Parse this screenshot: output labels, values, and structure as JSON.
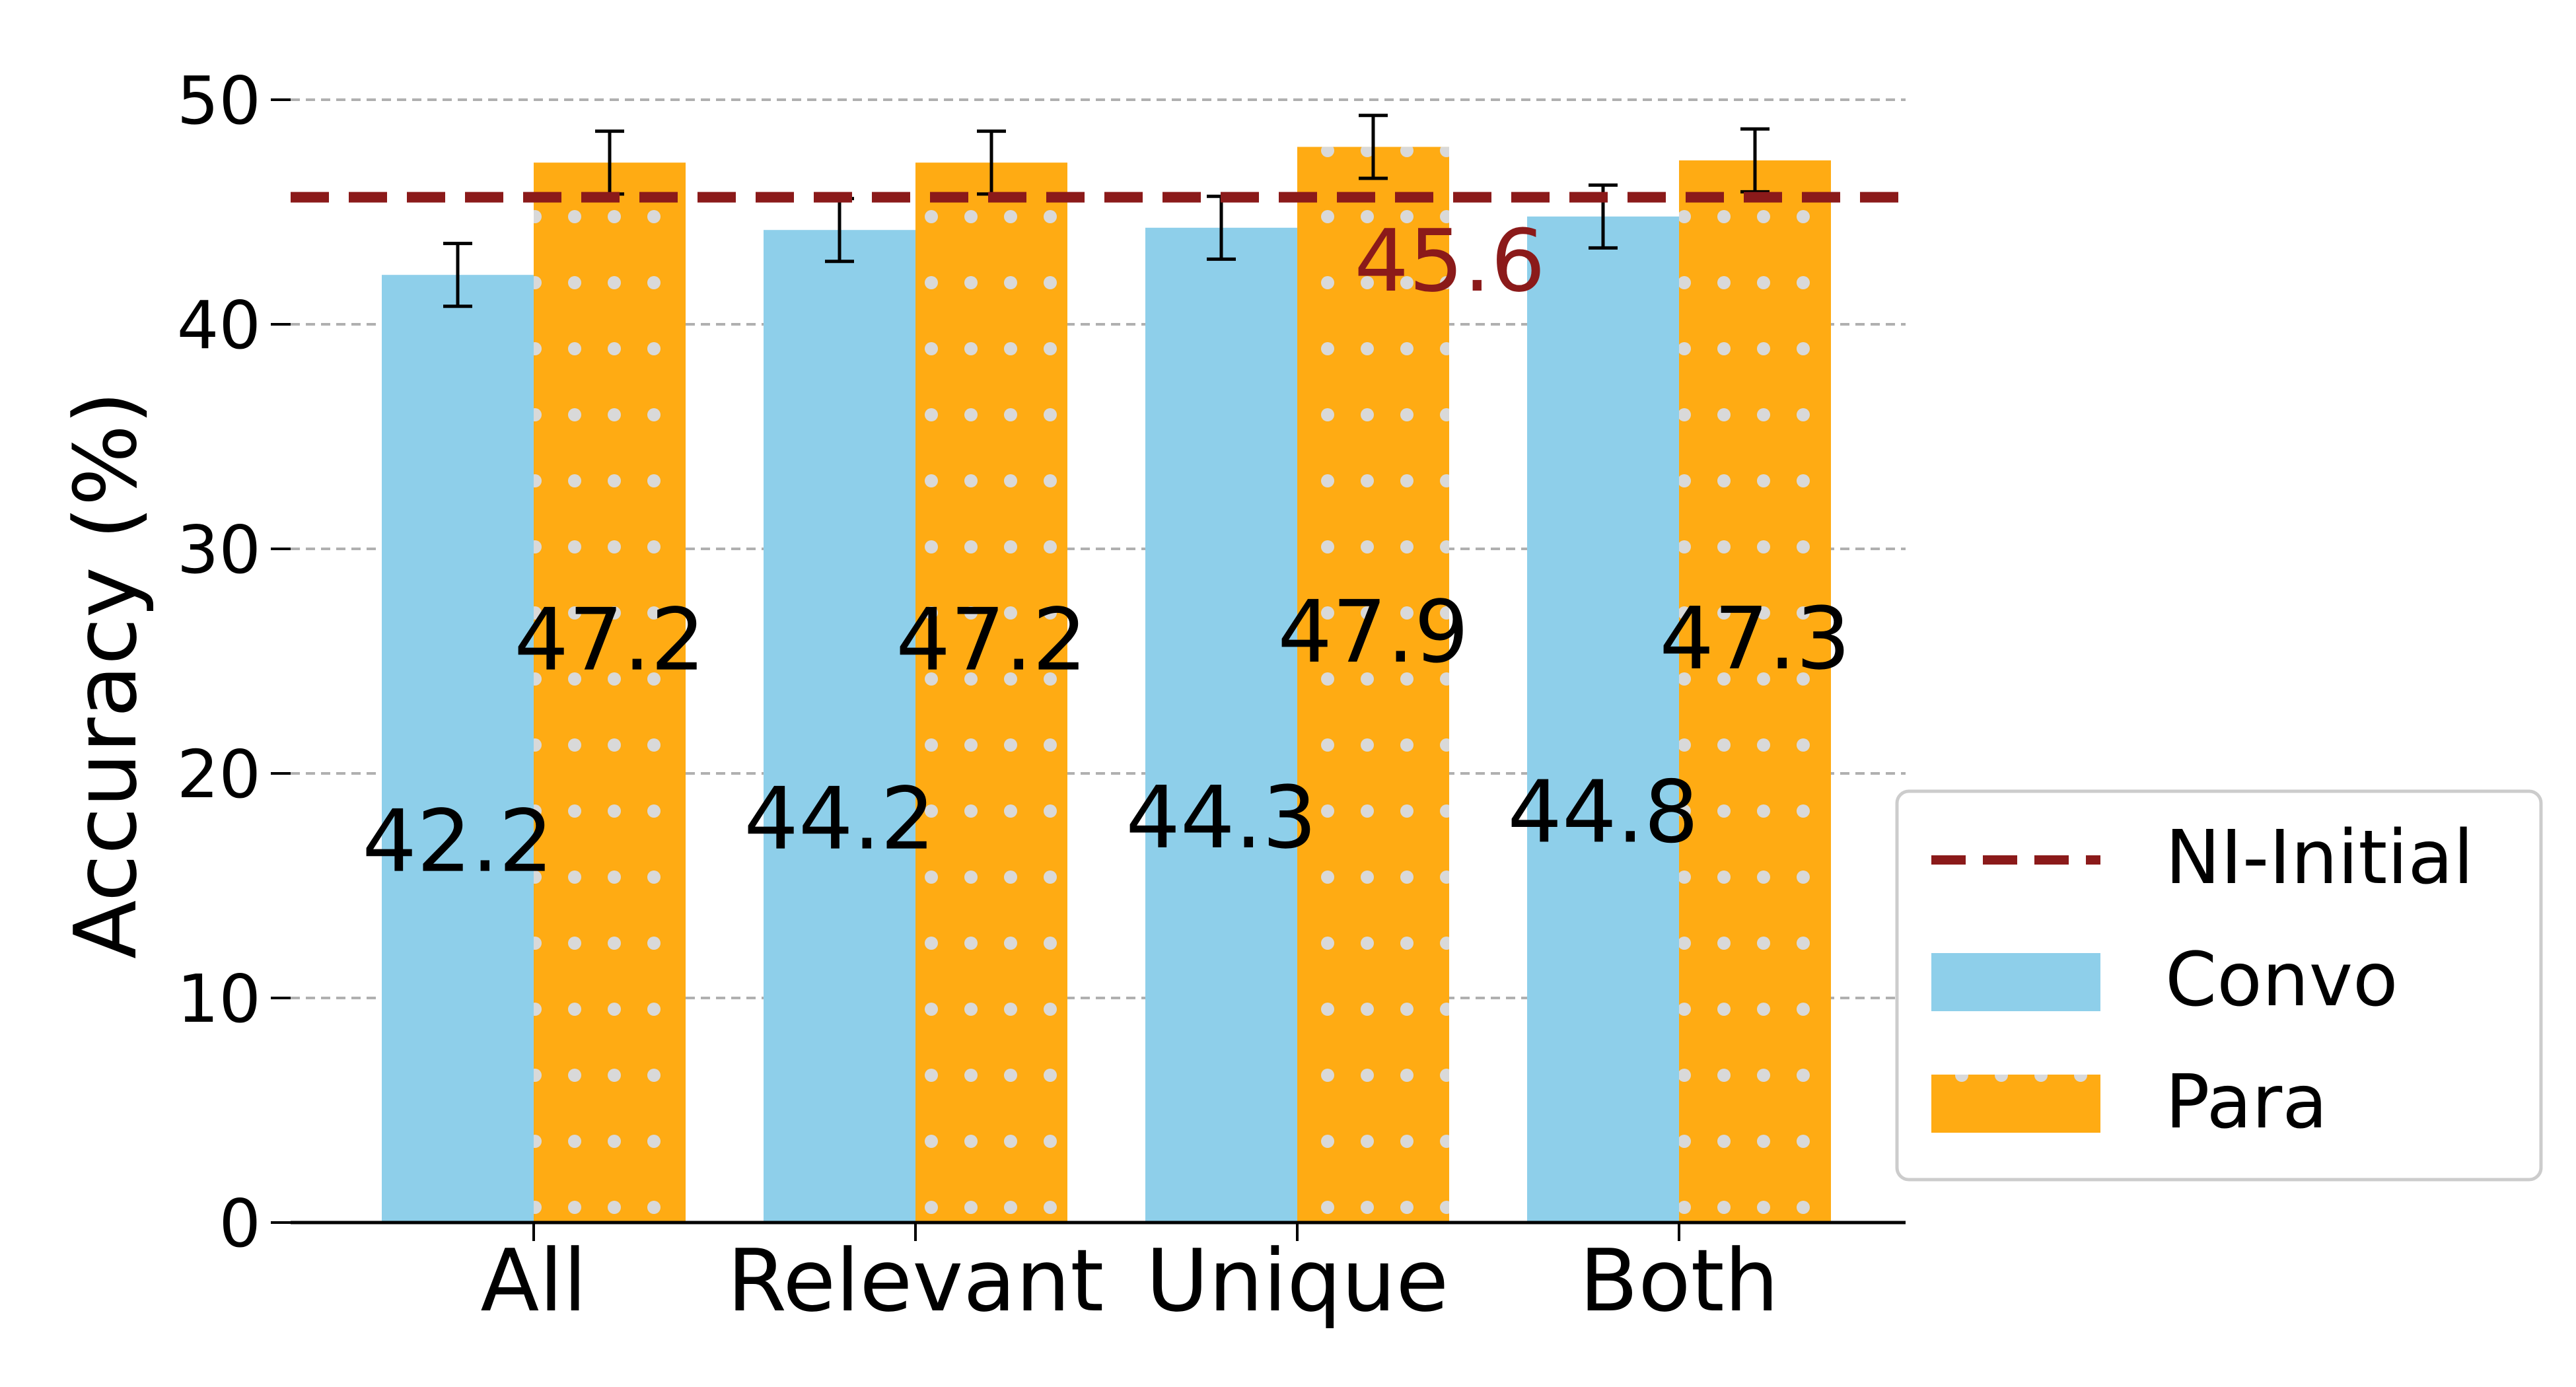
{
  "chart_data": {
    "type": "bar",
    "title": "",
    "xlabel": "",
    "ylabel": "Accuracy (%)",
    "ylim": [
      0,
      50
    ],
    "yticks": [
      0,
      10,
      20,
      30,
      40,
      50
    ],
    "y_tick_labels": [
      "0",
      "10",
      "20",
      "30",
      "40",
      "50"
    ],
    "grid": "horizontal dashed",
    "categories": [
      "All",
      "Relevant",
      "Unique",
      "Both"
    ],
    "series": [
      {
        "name": "Convo",
        "color": "#8ecfea",
        "values": [
          42.2,
          44.2,
          44.3,
          44.8
        ],
        "value_labels": [
          "42.2",
          "44.2",
          "44.3",
          "44.8"
        ],
        "error": [
          1.4,
          1.4,
          1.4,
          1.4
        ]
      },
      {
        "name": "Para",
        "color": "#ffab13",
        "pattern": "dots",
        "values": [
          47.2,
          47.2,
          47.9,
          47.3
        ],
        "value_labels": [
          "47.2",
          "47.2",
          "47.9",
          "47.3"
        ],
        "error": [
          1.4,
          1.4,
          1.4,
          1.4
        ]
      }
    ],
    "reference_line": {
      "name": "NI-Initial",
      "value": 45.6,
      "label": "45.6",
      "color": "#8b1a1a",
      "style": "dashed"
    },
    "legend": {
      "placement": "right",
      "entries": [
        "NI-Initial",
        "Convo",
        "Para"
      ]
    }
  }
}
